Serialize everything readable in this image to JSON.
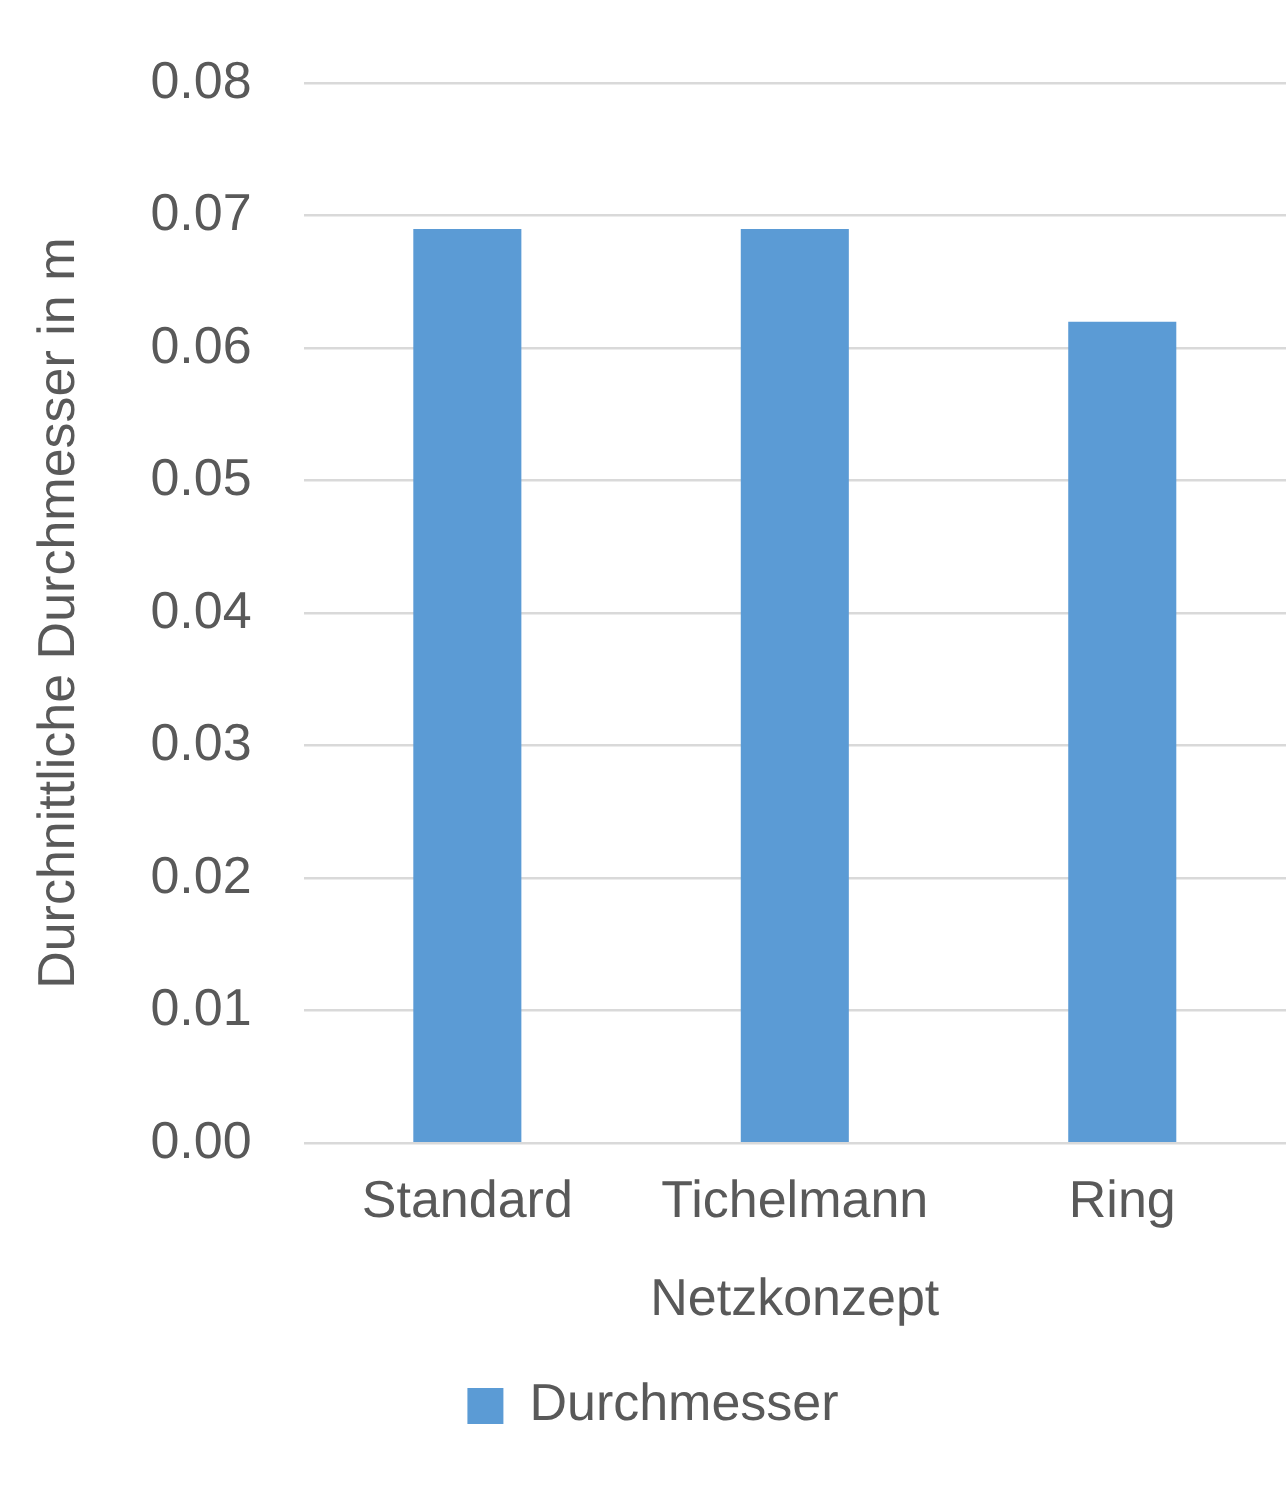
{
  "chart_data": {
    "type": "bar",
    "xlabel": "Netzkonzept",
    "ylabel": "Durchnittliche Durchmesser in m",
    "categories": [
      "Standard",
      "Tichelmann",
      "Ring"
    ],
    "series": [
      {
        "name": "Durchmesser",
        "color": "#5b9bd5",
        "values": [
          0.069,
          0.069,
          0.062
        ]
      }
    ],
    "ylim": [
      0,
      0.08
    ],
    "yticks": [
      {
        "value": 0,
        "label": "0.00"
      },
      {
        "value": 0.01,
        "label": "0.01"
      },
      {
        "value": 0.02,
        "label": "0.02"
      },
      {
        "value": 0.03,
        "label": "0.03"
      },
      {
        "value": 0.04,
        "label": "0.04"
      },
      {
        "value": 0.05,
        "label": "0.05"
      },
      {
        "value": 0.06,
        "label": "0.06"
      },
      {
        "value": 0.07,
        "label": "0.07"
      },
      {
        "value": 0.08,
        "label": "0.08"
      }
    ],
    "grid": "y",
    "legend": "bottom"
  }
}
